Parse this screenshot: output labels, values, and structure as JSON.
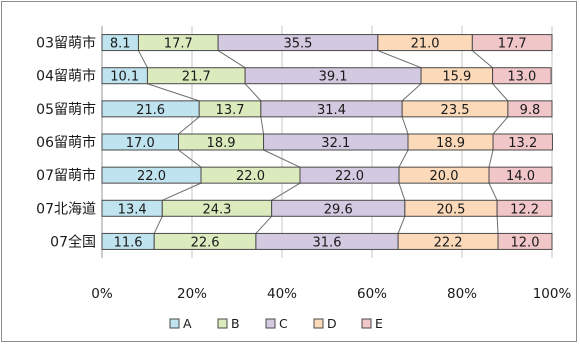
{
  "chart_data": {
    "type": "bar",
    "orientation": "horizontal",
    "stacked": "percent",
    "categories": [
      "03留萌市",
      "04留萌市",
      "05留萌市",
      "06留萌市",
      "07留萌市",
      "07北海道",
      "07全国"
    ],
    "series": [
      {
        "name": "A",
        "color": "#bfe4ef",
        "values": [
          8.1,
          10.1,
          21.6,
          17.0,
          22.0,
          13.4,
          11.6
        ]
      },
      {
        "name": "B",
        "color": "#dcebbe",
        "values": [
          17.7,
          21.7,
          13.7,
          18.9,
          22.0,
          24.3,
          22.6
        ]
      },
      {
        "name": "C",
        "color": "#d3c9e1",
        "values": [
          35.5,
          39.1,
          31.4,
          32.1,
          22.0,
          29.6,
          31.6
        ]
      },
      {
        "name": "D",
        "color": "#fbd9b9",
        "values": [
          21.0,
          15.9,
          23.5,
          18.9,
          20.0,
          20.5,
          22.2
        ]
      },
      {
        "name": "E",
        "color": "#f1c6c8",
        "values": [
          17.7,
          13.0,
          9.8,
          13.2,
          14.0,
          12.2,
          12.0
        ]
      }
    ],
    "data_labels": [
      [
        "8.1",
        "17.7",
        "35.5",
        "21.0",
        "17.7"
      ],
      [
        "10.1",
        "21.7",
        "39.1",
        "15.9",
        "13.0"
      ],
      [
        "21.6",
        "13.7",
        "31.4",
        "23.5",
        "9.8"
      ],
      [
        "17.0",
        "18.9",
        "32.1",
        "18.9",
        "13.2"
      ],
      [
        "22.0",
        "22.0",
        "22.0",
        "20.0",
        "14.0"
      ],
      [
        "13.4",
        "24.3",
        "29.6",
        "20.5",
        "12.2"
      ],
      [
        "11.6",
        "22.6",
        "31.6",
        "22.2",
        "12.0"
      ]
    ],
    "x_ticks": [
      "0%",
      "20%",
      "40%",
      "60%",
      "80%",
      "100%"
    ],
    "xlim": [
      0,
      100
    ],
    "series_lines": true,
    "grid": true,
    "legend_position": "bottom",
    "title": "",
    "xlabel": "",
    "ylabel": ""
  }
}
